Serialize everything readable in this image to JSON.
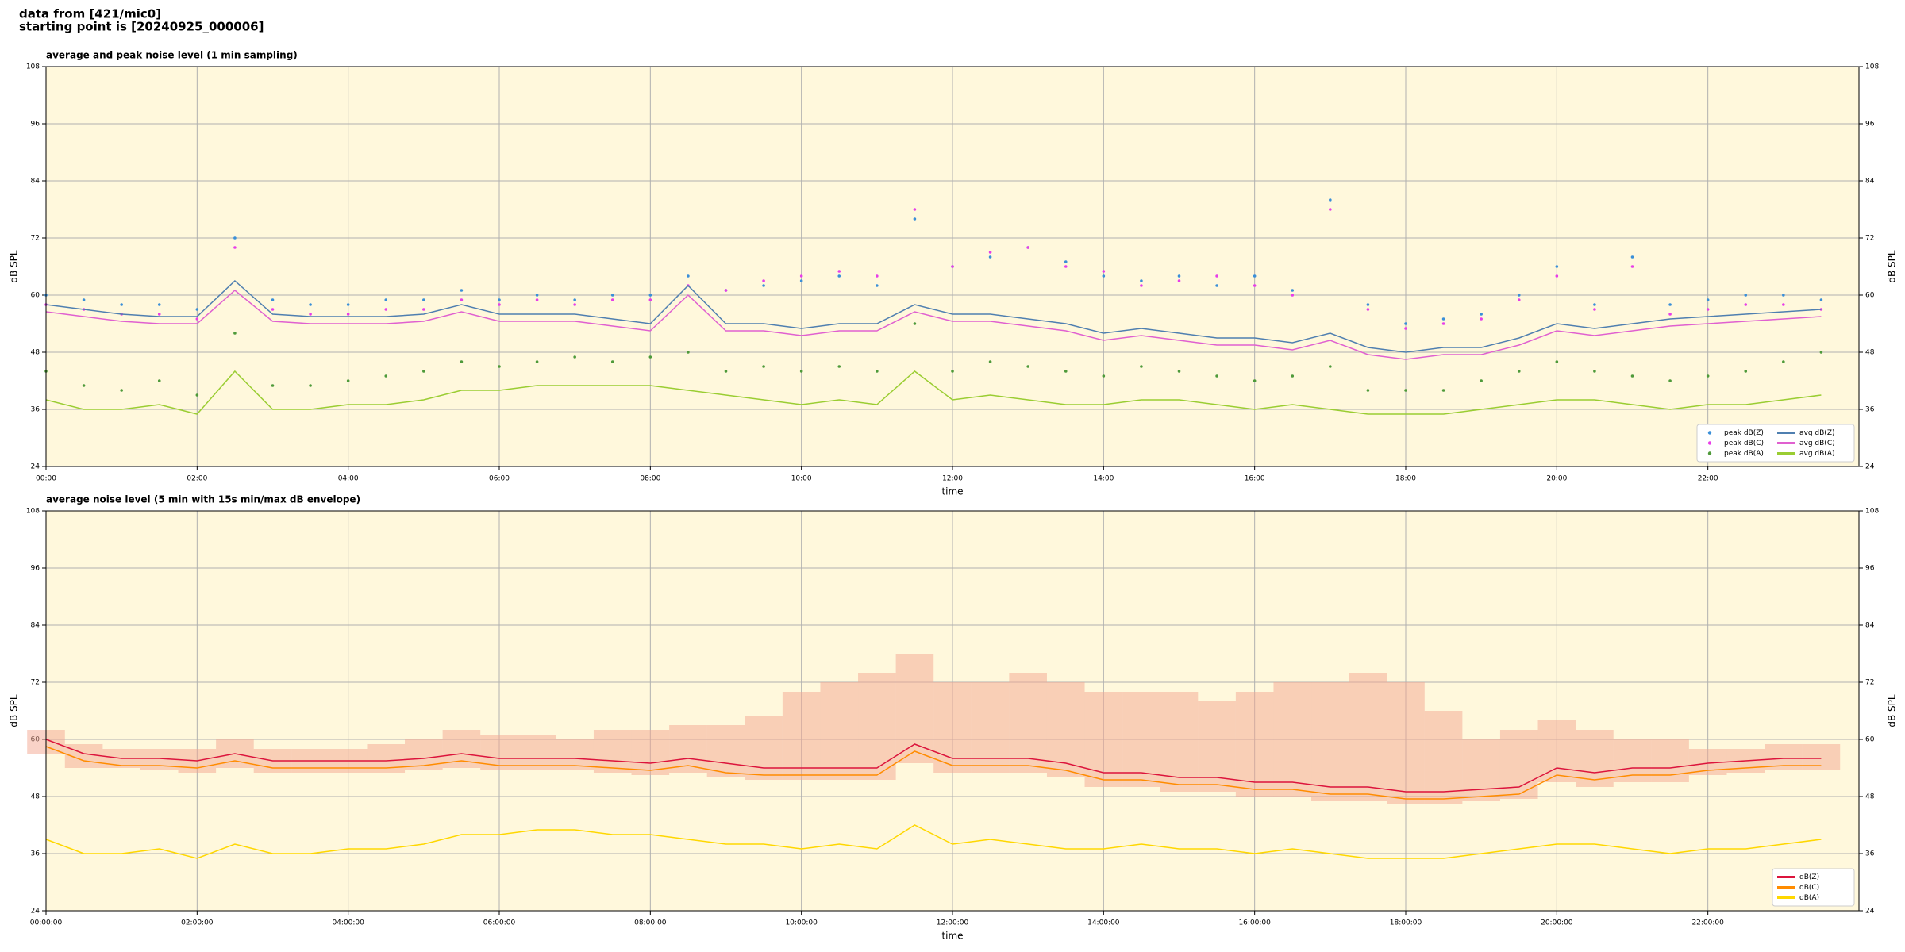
{
  "header": [
    "data from [421/mic0]",
    "starting point is [20240925_000006]"
  ],
  "chart_data": [
    {
      "type": "line",
      "title": "average and peak noise level (1 min sampling)",
      "xlabel": "time",
      "ylabel": "dB SPL",
      "x": [
        "00:00",
        "00:30",
        "01:00",
        "01:30",
        "02:00",
        "02:30",
        "03:00",
        "03:30",
        "04:00",
        "04:30",
        "05:00",
        "05:30",
        "06:00",
        "06:30",
        "07:00",
        "07:30",
        "08:00",
        "08:30",
        "09:00",
        "09:30",
        "10:00",
        "10:30",
        "11:00",
        "11:30",
        "12:00",
        "12:30",
        "13:00",
        "13:30",
        "14:00",
        "14:30",
        "15:00",
        "15:30",
        "16:00",
        "16:30",
        "17:00",
        "17:30",
        "18:00",
        "18:30",
        "19:00",
        "19:30",
        "20:00",
        "20:30",
        "21:00",
        "21:30",
        "22:00",
        "22:30",
        "23:00",
        "23:30"
      ],
      "xlim": [
        "00:00",
        "24:00"
      ],
      "xticks": [
        "00:00",
        "02:00",
        "04:00",
        "06:00",
        "08:00",
        "10:00",
        "12:00",
        "14:00",
        "16:00",
        "18:00",
        "20:00",
        "22:00"
      ],
      "ylim": [
        24,
        108
      ],
      "yticks": [
        24,
        36,
        48,
        60,
        72,
        84,
        96,
        108
      ],
      "grid": true,
      "legend": "lower right",
      "legend_columns": 2,
      "series": [
        {
          "name": "peak dB(Z)",
          "kind": "scatter",
          "color": "#3a8fd8",
          "values": [
            60,
            59,
            58,
            58,
            57,
            72,
            59,
            58,
            58,
            59,
            59,
            61,
            59,
            60,
            59,
            60,
            60,
            64,
            61,
            62,
            63,
            64,
            62,
            76,
            66,
            68,
            70,
            67,
            64,
            63,
            64,
            62,
            64,
            61,
            80,
            58,
            54,
            55,
            56,
            60,
            66,
            58,
            68,
            58,
            59,
            60,
            60,
            59
          ]
        },
        {
          "name": "peak dB(C)",
          "kind": "scatter",
          "color": "#e83ee8",
          "values": [
            58,
            57,
            56,
            56,
            55,
            70,
            57,
            56,
            56,
            57,
            57,
            59,
            58,
            59,
            58,
            59,
            59,
            62,
            61,
            63,
            64,
            65,
            64,
            78,
            66,
            69,
            70,
            66,
            65,
            62,
            63,
            64,
            62,
            60,
            78,
            57,
            53,
            54,
            55,
            59,
            64,
            57,
            66,
            56,
            57,
            58,
            58,
            57
          ]
        },
        {
          "name": "peak dB(A)",
          "kind": "scatter",
          "color": "#4e9a3a",
          "values": [
            44,
            41,
            40,
            42,
            39,
            52,
            41,
            41,
            42,
            43,
            44,
            46,
            45,
            46,
            47,
            46,
            47,
            48,
            44,
            45,
            44,
            45,
            44,
            54,
            44,
            46,
            45,
            44,
            43,
            45,
            44,
            43,
            42,
            43,
            45,
            40,
            40,
            40,
            42,
            44,
            46,
            44,
            43,
            42,
            43,
            44,
            46,
            48
          ]
        },
        {
          "name": "avg dB(Z)",
          "kind": "line",
          "color": "#4f7fb0",
          "values": [
            58,
            57,
            56,
            55.5,
            55.5,
            63,
            56,
            55.5,
            55.5,
            55.5,
            56,
            58,
            56,
            56,
            56,
            55,
            54,
            62,
            54,
            54,
            53,
            54,
            54,
            58,
            56,
            56,
            55,
            54,
            52,
            53,
            52,
            51,
            51,
            50,
            52,
            49,
            48,
            49,
            49,
            51,
            54,
            53,
            54,
            55,
            55.5,
            56,
            56.5,
            57
          ]
        },
        {
          "name": "avg dB(C)",
          "kind": "line",
          "color": "#e060d0",
          "values": [
            56.5,
            55.5,
            54.5,
            54,
            54,
            61,
            54.5,
            54,
            54,
            54,
            54.5,
            56.5,
            54.5,
            54.5,
            54.5,
            53.5,
            52.5,
            60,
            52.5,
            52.5,
            51.5,
            52.5,
            52.5,
            56.5,
            54.5,
            54.5,
            53.5,
            52.5,
            50.5,
            51.5,
            50.5,
            49.5,
            49.5,
            48.5,
            50.5,
            47.5,
            46.5,
            47.5,
            47.5,
            49.5,
            52.5,
            51.5,
            52.5,
            53.5,
            54,
            54.5,
            55,
            55.5
          ]
        },
        {
          "name": "avg dB(A)",
          "kind": "line",
          "color": "#9acd32",
          "values": [
            38,
            36,
            36,
            37,
            35,
            44,
            36,
            36,
            37,
            37,
            38,
            40,
            40,
            41,
            41,
            41,
            41,
            40,
            39,
            38,
            37,
            38,
            37,
            44,
            38,
            39,
            38,
            37,
            37,
            38,
            38,
            37,
            36,
            37,
            36,
            35,
            35,
            35,
            36,
            37,
            38,
            38,
            37,
            36,
            37,
            37,
            38,
            39
          ]
        }
      ]
    },
    {
      "type": "line",
      "title": "average noise level (5 min with 15s min/max dB envelope)",
      "xlabel": "time",
      "ylabel": "dB SPL",
      "x": [
        "00:00:00",
        "00:30:00",
        "01:00:00",
        "01:30:00",
        "02:00:00",
        "02:30:00",
        "03:00:00",
        "03:30:00",
        "04:00:00",
        "04:30:00",
        "05:00:00",
        "05:30:00",
        "06:00:00",
        "06:30:00",
        "07:00:00",
        "07:30:00",
        "08:00:00",
        "08:30:00",
        "09:00:00",
        "09:30:00",
        "10:00:00",
        "10:30:00",
        "11:00:00",
        "11:30:00",
        "12:00:00",
        "12:30:00",
        "13:00:00",
        "13:30:00",
        "14:00:00",
        "14:30:00",
        "15:00:00",
        "15:30:00",
        "16:00:00",
        "16:30:00",
        "17:00:00",
        "17:30:00",
        "18:00:00",
        "18:30:00",
        "19:00:00",
        "19:30:00",
        "20:00:00",
        "20:30:00",
        "21:00:00",
        "21:30:00",
        "22:00:00",
        "22:30:00",
        "23:00:00",
        "23:30:00"
      ],
      "xlim": [
        "00:00:00",
        "24:00:00"
      ],
      "xticks": [
        "00:00:00",
        "02:00:00",
        "04:00:00",
        "06:00:00",
        "08:00:00",
        "10:00:00",
        "12:00:00",
        "14:00:00",
        "16:00:00",
        "18:00:00",
        "20:00:00",
        "22:00:00"
      ],
      "ylim": [
        24,
        108
      ],
      "yticks": [
        24,
        36,
        48,
        60,
        72,
        84,
        96,
        108
      ],
      "grid": true,
      "legend": "lower right",
      "legend_columns": 1,
      "envelope": {
        "color": "#f4a58f",
        "upper": [
          62,
          59,
          58,
          58,
          58,
          60,
          58,
          58,
          58,
          59,
          60,
          62,
          61,
          61,
          60,
          62,
          62,
          63,
          63,
          65,
          70,
          72,
          74,
          78,
          72,
          72,
          74,
          72,
          70,
          70,
          70,
          68,
          70,
          72,
          72,
          74,
          72,
          66,
          60,
          62,
          64,
          62,
          60,
          60,
          58,
          58,
          59,
          59
        ],
        "lower": [
          57,
          54,
          54,
          53.5,
          53,
          54,
          53,
          53,
          53,
          53,
          53.5,
          54,
          53.5,
          53.5,
          53.5,
          53,
          52.5,
          53,
          52,
          51.5,
          51.5,
          51.5,
          51.5,
          55,
          53,
          53,
          53,
          52,
          50,
          50,
          49,
          49,
          48,
          48,
          47,
          47,
          46.5,
          46.5,
          47,
          47.5,
          51,
          50,
          51,
          51,
          52.5,
          53,
          53.5,
          53.5
        ]
      },
      "series": [
        {
          "name": "dB(Z)",
          "kind": "line",
          "color": "#dc143c",
          "values": [
            60,
            57,
            56,
            56,
            55.5,
            57,
            55.5,
            55.5,
            55.5,
            55.5,
            56,
            57,
            56,
            56,
            56,
            55.5,
            55,
            56,
            55,
            54,
            54,
            54,
            54,
            59,
            56,
            56,
            56,
            55,
            53,
            53,
            52,
            52,
            51,
            51,
            50,
            50,
            49,
            49,
            49.5,
            50,
            54,
            53,
            54,
            54,
            55,
            55.5,
            56,
            56
          ]
        },
        {
          "name": "dB(C)",
          "kind": "line",
          "color": "#ff8c00",
          "values": [
            58.5,
            55.5,
            54.5,
            54.5,
            54,
            55.5,
            54,
            54,
            54,
            54,
            54.5,
            55.5,
            54.5,
            54.5,
            54.5,
            54,
            53.5,
            54.5,
            53,
            52.5,
            52.5,
            52.5,
            52.5,
            57.5,
            54.5,
            54.5,
            54.5,
            53.5,
            51.5,
            51.5,
            50.5,
            50.5,
            49.5,
            49.5,
            48.5,
            48.5,
            47.5,
            47.5,
            48,
            48.5,
            52.5,
            51.5,
            52.5,
            52.5,
            53.5,
            54,
            54.5,
            54.5
          ]
        },
        {
          "name": "dB(A)",
          "kind": "line",
          "color": "#ffd700",
          "values": [
            39,
            36,
            36,
            37,
            35,
            38,
            36,
            36,
            37,
            37,
            38,
            40,
            40,
            41,
            41,
            40,
            40,
            39,
            38,
            38,
            37,
            38,
            37,
            42,
            38,
            39,
            38,
            37,
            37,
            38,
            37,
            37,
            36,
            37,
            36,
            35,
            35,
            35,
            36,
            37,
            38,
            38,
            37,
            36,
            37,
            37,
            38,
            39
          ]
        }
      ]
    }
  ]
}
